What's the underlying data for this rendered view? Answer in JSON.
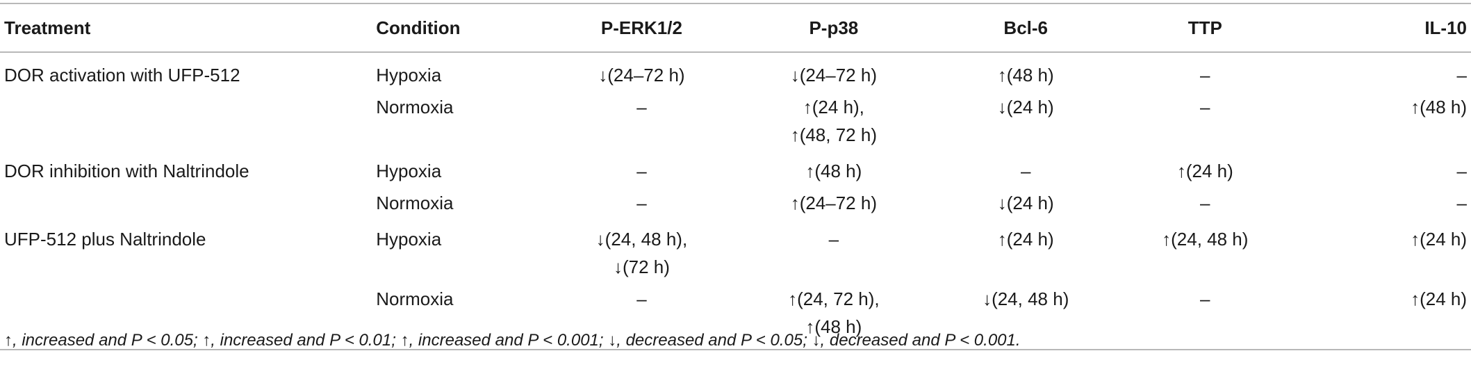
{
  "table": {
    "headers": [
      "Treatment",
      "Condition",
      "P-ERK1/2",
      "P-p38",
      "Bcl-6",
      "TTP",
      "IL-10"
    ],
    "rows": [
      {
        "treatment": "DOR activation with UFP-512",
        "condition": "Hypoxia",
        "cells": [
          [
            "↓(24–72 h)"
          ],
          [
            "↓(24–72 h)"
          ],
          [
            "↑(48 h)"
          ],
          [
            "–"
          ],
          [
            "–"
          ]
        ]
      },
      {
        "treatment": "",
        "condition": "Normoxia",
        "cells": [
          [
            "–"
          ],
          [
            "↑(24 h),",
            "↑(48, 72 h)"
          ],
          [
            "↓(24 h)"
          ],
          [
            "–"
          ],
          [
            "↑(48 h)"
          ]
        ]
      },
      {
        "treatment": "DOR inhibition with Naltrindole",
        "condition": "Hypoxia",
        "cells": [
          [
            "–"
          ],
          [
            "↑(48 h)"
          ],
          [
            "–"
          ],
          [
            "↑(24 h)"
          ],
          [
            "–"
          ]
        ]
      },
      {
        "treatment": "",
        "condition": "Normoxia",
        "cells": [
          [
            "–"
          ],
          [
            "↑(24–72 h)"
          ],
          [
            "↓(24 h)"
          ],
          [
            "–"
          ],
          [
            "–"
          ]
        ]
      },
      {
        "treatment": "UFP-512 plus Naltrindole",
        "condition": "Hypoxia",
        "cells": [
          [
            "↓(24, 48 h),",
            "↓(72 h)"
          ],
          [
            "–"
          ],
          [
            "↑(24 h)"
          ],
          [
            "↑(24, 48 h)"
          ],
          [
            "↑(24 h)"
          ]
        ]
      },
      {
        "treatment": "",
        "condition": "Normoxia",
        "cells": [
          [
            "–"
          ],
          [
            "↑(24, 72 h),",
            "↑(48 h)"
          ],
          [
            "↓(24, 48 h)"
          ],
          [
            "–"
          ],
          [
            "↑(24 h)"
          ]
        ]
      }
    ]
  },
  "footnote": "↑, increased and P < 0.05; ↑, increased and P < 0.01; ↑, increased and P < 0.001; ↓, decreased and P < 0.05; ↓, decreased and P < 0.001."
}
